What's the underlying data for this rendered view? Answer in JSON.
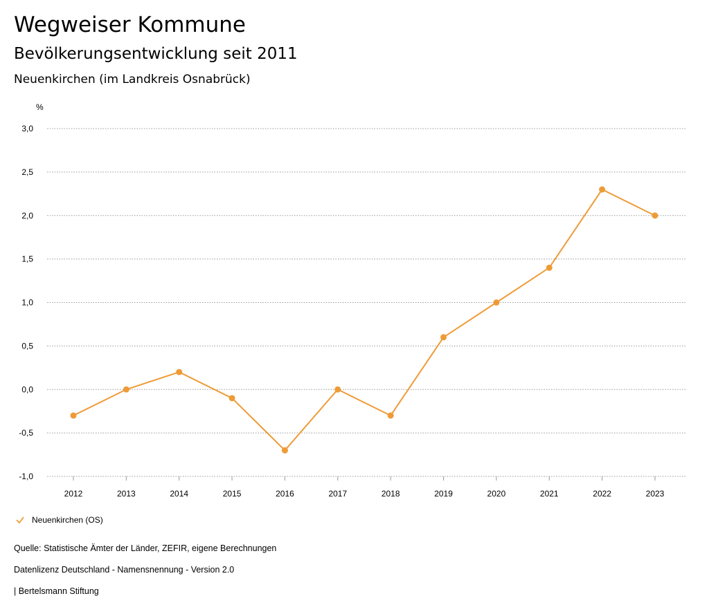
{
  "header": {
    "title": "Wegweiser Kommune",
    "subtitle": "Bevölkerungsentwicklung seit 2011",
    "region": "Neuenkirchen (im Landkreis Osnabrück)"
  },
  "chart_data": {
    "type": "line",
    "ylabel": "%",
    "ylim": [
      -1.0,
      3.0
    ],
    "yticks": [
      "3,0",
      "2,5",
      "2,0",
      "1,5",
      "1,0",
      "0,5",
      "0,0",
      "-0,5",
      "-1,0"
    ],
    "ytick_values": [
      3.0,
      2.5,
      2.0,
      1.5,
      1.0,
      0.5,
      0.0,
      -0.5,
      -1.0
    ],
    "categories": [
      "2012",
      "2013",
      "2014",
      "2015",
      "2016",
      "2017",
      "2018",
      "2019",
      "2020",
      "2021",
      "2022",
      "2023"
    ],
    "grid": true,
    "series": [
      {
        "name": "Neuenkirchen (OS)",
        "color": "#ee9b36",
        "values": [
          -0.3,
          0.0,
          0.2,
          -0.1,
          -0.7,
          0.0,
          -0.3,
          0.6,
          1.0,
          1.4,
          2.3,
          2.0
        ]
      }
    ],
    "legend_placement": "bottom-left"
  },
  "footer": {
    "source": "Quelle: Statistische Ämter der Länder, ZEFIR, eigene Berechnungen",
    "license": "Datenlizenz Deutschland - Namensnennung - Version 2.0",
    "credit": "| Bertelsmann Stiftung"
  }
}
